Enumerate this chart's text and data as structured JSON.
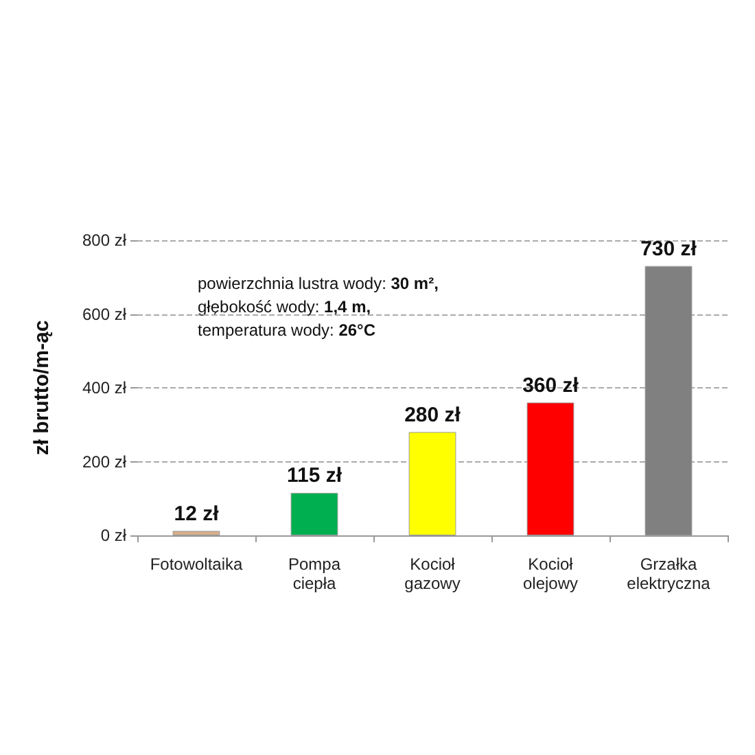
{
  "chart_data": {
    "type": "bar",
    "ylabel": "zł brutto/m-ąc",
    "categories": [
      "Fotowoltaika",
      "Pompa\nciepła",
      "Kocioł\ngazowy",
      "Kocioł\nolejowy",
      "Grzałka\nelektryczna"
    ],
    "values": [
      12,
      115,
      280,
      360,
      730
    ],
    "colors": [
      "#d8b08c",
      "#00b050",
      "#ffff00",
      "#ff0000",
      "#808080"
    ],
    "value_labels": [
      "12 zł",
      "115 zł",
      "280 zł",
      "360 zł",
      "730 zł"
    ],
    "ylim": [
      0,
      800
    ],
    "yticks": [
      {
        "value": 0,
        "label": "0 zł"
      },
      {
        "value": 200,
        "label": "200 zł"
      },
      {
        "value": 400,
        "label": "400 zł"
      },
      {
        "value": 600,
        "label": "600 zł"
      },
      {
        "value": 800,
        "label": "800 zł"
      }
    ],
    "grid": "y",
    "annotations": [
      "powierzchnia lustra wody: 30 m²,",
      "głębokość wody: 1,4 m,",
      "temperatura wody: 26°C"
    ]
  }
}
